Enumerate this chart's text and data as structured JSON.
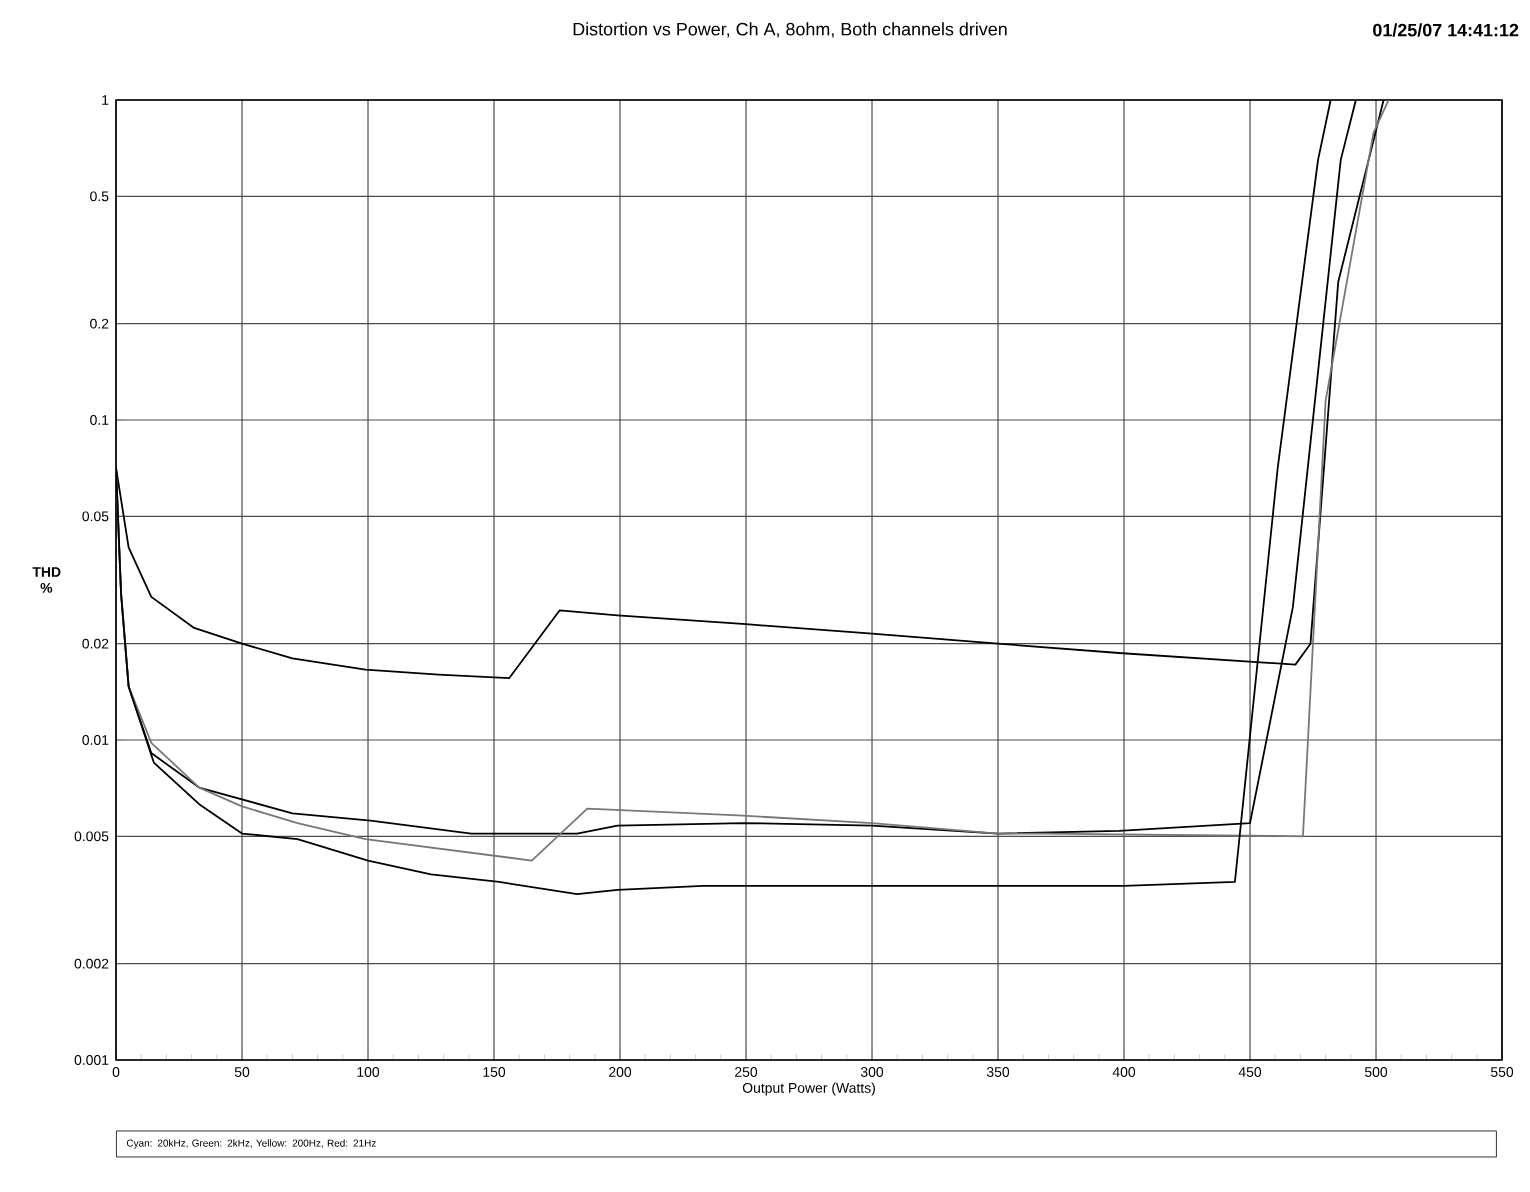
{
  "chart_data": {
    "type": "line",
    "title": "Distortion vs Power, Ch A, 8ohm, Both channels driven",
    "xlabel": "Output Power (Watts)",
    "ylabel": "THD %",
    "annotations": [
      "01/25/07 14:41:12",
      "Cyan: 20kHz, Green: 2kHz, Yellow: 200Hz, Red: 21Hz"
    ],
    "log": "y",
    "grid": true,
    "marker": "none",
    "line_style": "solid",
    "xlim": [
      0,
      550
    ],
    "ylim": [
      0.001,
      1
    ],
    "xticks": [
      0,
      50,
      100,
      150,
      200,
      250,
      300,
      350,
      400,
      450,
      500,
      550
    ],
    "yticks": [
      0.001,
      0.002,
      0.005,
      0.01,
      0.02,
      0.05,
      0.1,
      0.2,
      0.5,
      1
    ],
    "series": [
      {
        "color": "#000000",
        "x": [
          0,
          5,
          14,
          31,
          50,
          70,
          99,
          128,
          156,
          176,
          199,
          250,
          300,
          350,
          398,
          468,
          474,
          485,
          503
        ],
        "values": [
          0.071,
          0.04,
          0.028,
          0.0224,
          0.02,
          0.018,
          0.0166,
          0.016,
          0.0156,
          0.0254,
          0.0245,
          0.023,
          0.0215,
          0.02,
          0.0187,
          0.0172,
          0.02,
          0.27,
          1
        ]
      },
      {
        "color": "#000000",
        "x": [
          0,
          2,
          5,
          14,
          33,
          70,
          101,
          141,
          183,
          199,
          249,
          300,
          350,
          398,
          450,
          467,
          486,
          492
        ],
        "values": [
          0.071,
          0.0287,
          0.0147,
          0.0091,
          0.0071,
          0.0059,
          0.0056,
          0.0051,
          0.0051,
          0.0054,
          0.0055,
          0.0054,
          0.0051,
          0.0052,
          0.0055,
          0.026,
          0.65,
          1
        ]
      },
      {
        "color": "#777777",
        "x": [
          0,
          2,
          5,
          14,
          33,
          50,
          72,
          99,
          165,
          187,
          249,
          300,
          350,
          368,
          471,
          480,
          499,
          505
        ],
        "values": [
          0.071,
          0.0287,
          0.0147,
          0.0098,
          0.0071,
          0.0062,
          0.0055,
          0.0049,
          0.0042,
          0.0061,
          0.0058,
          0.0055,
          0.0051,
          0.0051,
          0.005,
          0.115,
          0.79,
          1
        ]
      },
      {
        "color": "#000000",
        "x": [
          0,
          2,
          5,
          15,
          33,
          50,
          72,
          100,
          125,
          152,
          183,
          199,
          233,
          300,
          400,
          444,
          461,
          477,
          482
        ],
        "values": [
          0.071,
          0.0287,
          0.0147,
          0.0085,
          0.0063,
          0.0051,
          0.0049,
          0.0042,
          0.0038,
          0.0036,
          0.0033,
          0.0034,
          0.0035,
          0.0035,
          0.0035,
          0.0036,
          0.071,
          0.65,
          1
        ]
      }
    ]
  }
}
